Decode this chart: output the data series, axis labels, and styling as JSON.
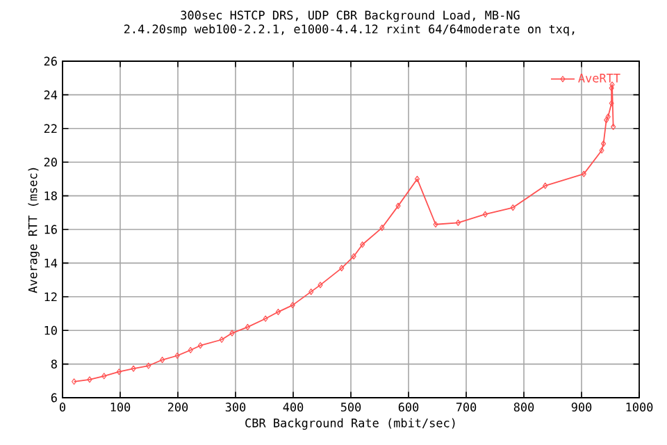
{
  "chart_data": {
    "type": "line",
    "title": "300sec HSTCP DRS, UDP CBR Background Load, MB-NG",
    "subtitle": "2.4.20smp web100-2.2.1, e1000-4.4.12 rxint 64/64moderate on txq,",
    "xlabel": "CBR Background Rate (mbit/sec)",
    "ylabel": "Average RTT (msec)",
    "series": [
      {
        "name": "AveRTT",
        "color": "#ff5050",
        "x": [
          20,
          47,
          72,
          98,
          123,
          149,
          173,
          199,
          222,
          239,
          276,
          294,
          321,
          352,
          374,
          399,
          431,
          447,
          484,
          505,
          520,
          554,
          582,
          615,
          647,
          686,
          733,
          781,
          837,
          904,
          935,
          938,
          943,
          946,
          952,
          952,
          953,
          955
        ],
        "values": [
          6.96,
          7.08,
          7.29,
          7.54,
          7.73,
          7.9,
          8.25,
          8.5,
          8.83,
          9.1,
          9.45,
          9.84,
          10.2,
          10.7,
          11.1,
          11.5,
          12.3,
          12.7,
          13.7,
          14.4,
          15.1,
          16.1,
          17.4,
          19.0,
          16.3,
          16.4,
          16.9,
          17.3,
          18.6,
          19.3,
          20.7,
          21.1,
          22.5,
          22.7,
          23.5,
          24.4,
          24.6,
          22.1
        ]
      }
    ],
    "xlim": [
      0,
      1000
    ],
    "xticks": [
      0,
      100,
      200,
      300,
      400,
      500,
      600,
      700,
      800,
      900,
      1000
    ],
    "ylim": [
      6,
      26
    ],
    "yticks": [
      6,
      8,
      10,
      12,
      14,
      16,
      18,
      20,
      22,
      24,
      26
    ],
    "grid": true,
    "legend": "top right",
    "marker": "diamond",
    "line_style": "solid"
  }
}
